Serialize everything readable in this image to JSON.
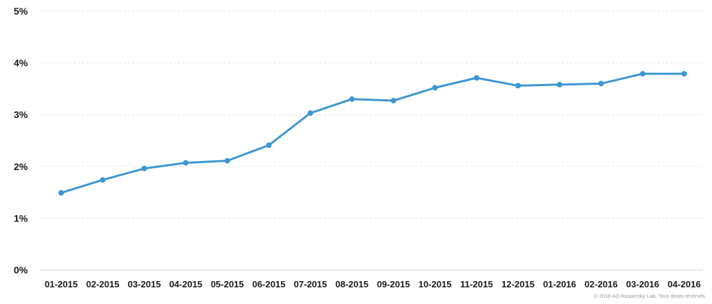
{
  "chart_data": {
    "type": "line",
    "title": "",
    "xlabel": "",
    "ylabel": "",
    "categories": [
      "01-2015",
      "02-2015",
      "03-2015",
      "04-2015",
      "05-2015",
      "06-2015",
      "07-2015",
      "08-2015",
      "09-2015",
      "10-2015",
      "11-2015",
      "12-2015",
      "01-2016",
      "02-2016",
      "03-2016",
      "04-2016"
    ],
    "series": [
      {
        "values": [
          1.49,
          1.74,
          1.96,
          2.07,
          2.11,
          2.41,
          3.03,
          3.3,
          3.27,
          3.52,
          3.71,
          3.56,
          3.58,
          3.6,
          3.79,
          3.79
        ]
      }
    ],
    "ylim": [
      0,
      5
    ],
    "yticks": [
      0,
      1,
      2,
      3,
      4,
      5
    ],
    "ytick_labels": [
      "0%",
      "1%",
      "2%",
      "3%",
      "4%",
      "5%"
    ],
    "grid": true,
    "line_color": "#3d97d3"
  },
  "copyright": "© 2016 AO Kaspersky Lab. Tous droits réservés."
}
